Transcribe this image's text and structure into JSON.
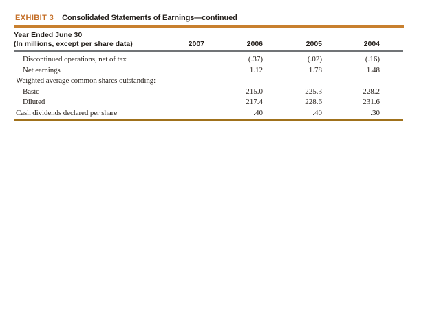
{
  "exhibit": {
    "label": "EXHIBIT 3",
    "title": "Consolidated Statements of Earnings—continued"
  },
  "table": {
    "caption_line1": "Year Ended June 30",
    "caption_line2": "(In millions, except per share data)",
    "columns": [
      "2007",
      "2006",
      "2005",
      "2004"
    ],
    "rows": [
      {
        "label": "Discontinued operations, net of tax",
        "values": [
          "",
          "(.37)",
          "(.02)",
          "(.16)"
        ]
      },
      {
        "label": "Net earnings",
        "values": [
          "",
          "1.12",
          "1.78",
          "1.48"
        ]
      },
      {
        "label": "Weighted average common shares outstanding:",
        "values": [
          "",
          "",
          "",
          ""
        ]
      },
      {
        "label": "Basic",
        "values": [
          "",
          "215.0",
          "225.3",
          "228.2"
        ]
      },
      {
        "label": "Diluted",
        "values": [
          "",
          "217.4",
          "228.6",
          "231.6"
        ]
      },
      {
        "label": "Cash dividends declared per share",
        "values": [
          "",
          ".40",
          ".40",
          ".30"
        ]
      }
    ]
  },
  "colors": {
    "exhibit-orange": "#C46F28",
    "title-rule": "#C8802F",
    "header-rule": "#717477",
    "bottom-rule": "#A0711B",
    "heading-ink": "#231E1A",
    "body-ink": "#2B2520"
  }
}
